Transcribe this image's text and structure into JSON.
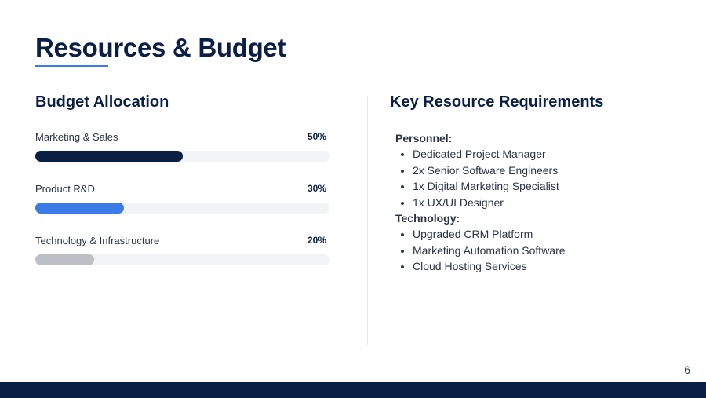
{
  "header": {
    "title": "Resources & Budget"
  },
  "budget": {
    "heading": "Budget Allocation",
    "items": [
      {
        "label": "Marketing & Sales",
        "value": 50,
        "value_label": "50%",
        "color": "#0b1f45"
      },
      {
        "label": "Product R&D",
        "value": 30,
        "value_label": "30%",
        "color": "#3b7be8"
      },
      {
        "label": "Technology & Infrastructure",
        "value": 20,
        "value_label": "20%",
        "color": "#bcc0c6"
      }
    ]
  },
  "resources": {
    "heading": "Key Resource Requirements",
    "groups": [
      {
        "title": "Personnel:",
        "items": [
          "Dedicated Project Manager",
          "2x Senior Software Engineers",
          "1x Digital Marketing Specialist",
          "1x UX/UI Designer"
        ]
      },
      {
        "title": "Technology:",
        "items": [
          "Upgraded CRM Platform",
          "Marketing Automation Software",
          "Cloud Hosting Services"
        ]
      }
    ]
  },
  "page_number": "6"
}
